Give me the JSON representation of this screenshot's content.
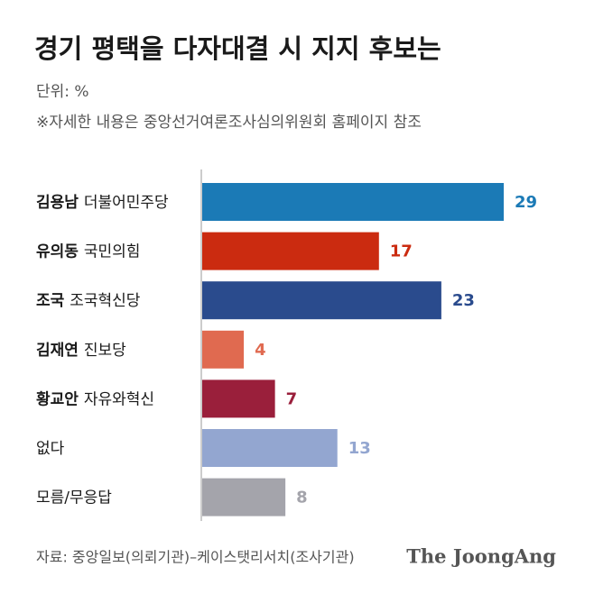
{
  "chart_data": {
    "type": "bar",
    "orientation": "horizontal",
    "title": "경기 평택을 다자대결 시 지지 후보는",
    "subtitle": "단위: %",
    "note": "※자세한 내용은 중앙선거여론조사심의위원회 홈페이지 참조",
    "source": "자료: 중앙일보(의뢰기관)–케이스탯리서치(조사기관)",
    "brand": "The JoongAng",
    "categories": [
      "김용남 더불어민주당",
      "유의동 국민의힘",
      "조국 조국혁신당",
      "김재연 진보당",
      "황교안 자유와혁신",
      "없다",
      "모름/무응답"
    ],
    "values": [
      29,
      17,
      23,
      4,
      7,
      13,
      8
    ],
    "colors": [
      "#1b7ab6",
      "#cb2b10",
      "#2a4b8d",
      "#e06a50",
      "#9a1f3b",
      "#93a6d0",
      "#a4a4ab"
    ]
  }
}
